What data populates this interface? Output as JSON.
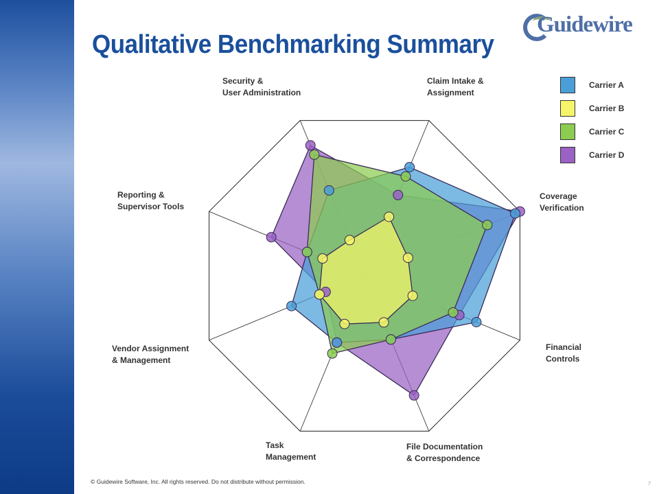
{
  "title": "Qualitative Benchmarking Summary",
  "logo": {
    "text": "Guidewire"
  },
  "footer": "© Guidewire Software, Inc. All rights reserved. Do not distribute without permission.",
  "page_number": "7",
  "chart_data": {
    "type": "radar",
    "title": "Qualitative Benchmarking Summary",
    "axes": [
      "Claim Intake & Assignment",
      "Coverage Verification",
      "Financial Controls",
      "File Documentation & Correspondence",
      "Task Management",
      "Vendor Assignment & Management",
      "Reporting & Supervisor Tools",
      "Security & User Administration"
    ],
    "axis_label_lines": [
      [
        "Claim Intake &",
        "Assignment"
      ],
      [
        "Coverage",
        "Verification"
      ],
      [
        "Financial",
        "Controls"
      ],
      [
        "File Documentation",
        "& Correspondence"
      ],
      [
        "Task",
        "Management"
      ],
      [
        "Vendor Assignment",
        "& Management"
      ],
      [
        "Reporting &",
        "Supervisor Tools"
      ],
      [
        "Security &",
        "User Administration"
      ]
    ],
    "range": [
      0,
      5
    ],
    "legend_position": "top-right",
    "grid": false,
    "series": [
      {
        "name": "Carrier A",
        "color": "#4a9fd8",
        "values": [
          3.5,
          4.85,
          3.6,
          2.05,
          2.15,
          2.35,
          1.85,
          2.75
        ]
      },
      {
        "name": "Carrier B",
        "color": "#f5f56a",
        "values": [
          1.9,
          1.4,
          1.55,
          1.5,
          1.55,
          1.45,
          1.35,
          1.15
        ]
      },
      {
        "name": "Carrier C",
        "color": "#8ccc50",
        "values": [
          3.2,
          3.95,
          2.85,
          2.05,
          2.5,
          1.45,
          1.85,
          3.9
        ]
      },
      {
        "name": "Carrier D",
        "color": "#9a62c4",
        "values": [
          2.6,
          5.0,
          3.05,
          3.85,
          2.15,
          1.25,
          3.0,
          4.2
        ]
      }
    ]
  }
}
